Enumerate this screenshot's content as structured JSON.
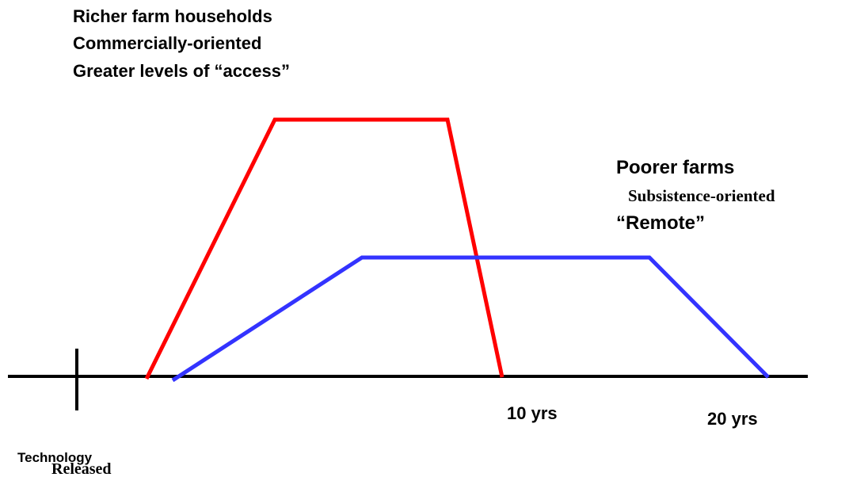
{
  "richer": {
    "lines": [
      "Richer farm households",
      "Commercially-oriented",
      "Greater levels of “access”"
    ]
  },
  "poorer": {
    "title": "Poorer farms",
    "subtitle": "Subsistence-oriented",
    "note": "“Remote”"
  },
  "axis": {
    "marks": [
      "10 yrs",
      "20 yrs"
    ],
    "origin": [
      "Technology",
      "Released"
    ]
  }
}
